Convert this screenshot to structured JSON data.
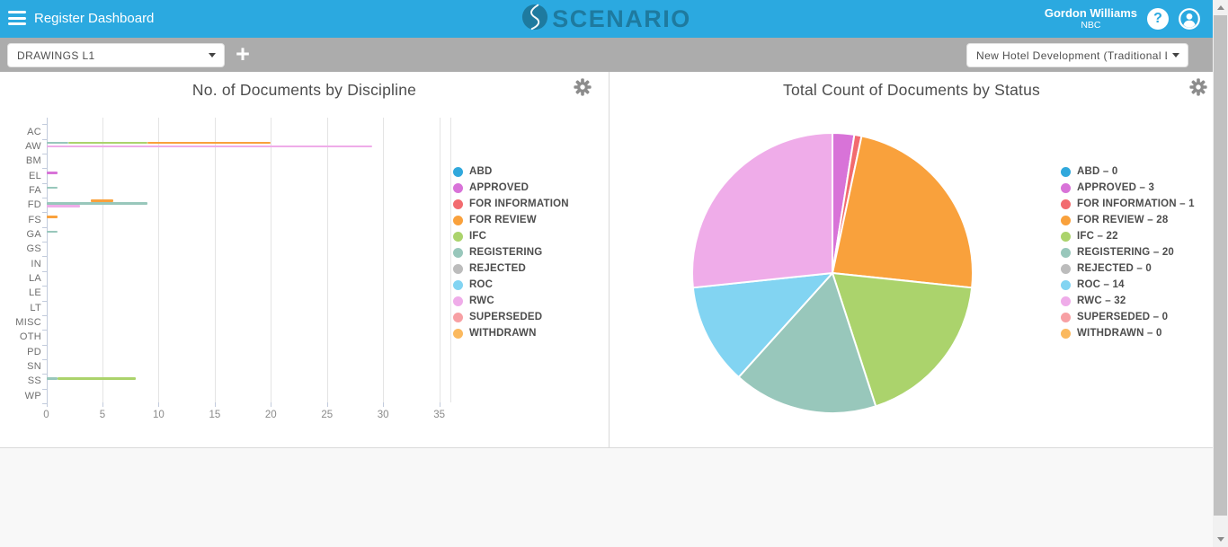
{
  "topbar": {
    "title": "Register Dashboard",
    "logo_text": "SCENARIO",
    "user_name": "Gordon Williams",
    "user_org": "NBC",
    "help_glyph": "?",
    "colors": {
      "bar": "#2BA9E0",
      "logo": "#1E7A9F"
    }
  },
  "toolbar": {
    "register_select_value": "DRAWINGS L1",
    "add_button_label": "+",
    "project_select_value": "New Hotel Development (Traditional L",
    "bar_color": "#ACACAC"
  },
  "chart_data": [
    {
      "type": "bar",
      "title": "No. of Documents by Discipline",
      "orientation": "horizontal",
      "grid": true,
      "legend_position": "right",
      "xlabel": "",
      "ylabel": "",
      "xlim": [
        0,
        36
      ],
      "xticks": [
        0,
        5,
        10,
        15,
        20,
        25,
        30,
        35
      ],
      "categories": [
        "AC",
        "AW",
        "BM",
        "EL",
        "FA",
        "FD",
        "FS",
        "GA",
        "GS",
        "IN",
        "LA",
        "LE",
        "LT",
        "MISC",
        "OTH",
        "PD",
        "SN",
        "SS",
        "WP"
      ],
      "series": [
        {
          "name": "ABD",
          "color": "#30A8DC"
        },
        {
          "name": "APPROVED",
          "color": "#D873D8"
        },
        {
          "name": "FOR INFORMATION",
          "color": "#F26B6F"
        },
        {
          "name": "FOR REVIEW",
          "color": "#F9A13C"
        },
        {
          "name": "IFC",
          "color": "#ABD36C"
        },
        {
          "name": "REGISTERING",
          "color": "#98C7BB"
        },
        {
          "name": "REJECTED",
          "color": "#BCBCBC"
        },
        {
          "name": "ROC",
          "color": "#82D4F2"
        },
        {
          "name": "RWC",
          "color": "#EFACE9"
        },
        {
          "name": "SUPERSEDED",
          "color": "#F7A0A4"
        },
        {
          "name": "WITHDRAWN",
          "color": "#FBB95E"
        }
      ],
      "bars": {
        "AW": [
          {
            "series": "REGISTERING",
            "value": 2,
            "from": 0,
            "to": 2,
            "dy": -4
          },
          {
            "series": "IFC",
            "value": 9,
            "from": 2,
            "to": 9,
            "dy": -4
          },
          {
            "series": "FOR REVIEW",
            "value": 20,
            "from": 9,
            "to": 20,
            "dy": -4
          },
          {
            "series": "RWC",
            "value": 29,
            "from": 0,
            "to": 29,
            "dy": 0
          }
        ],
        "EL": [
          {
            "series": "APPROVED",
            "value": 1,
            "from": 0,
            "to": 1,
            "dy": -3
          }
        ],
        "FA": [
          {
            "series": "REGISTERING",
            "value": 1,
            "from": 0,
            "to": 1,
            "dy": -3
          }
        ],
        "FD": [
          {
            "series": "FOR REVIEW",
            "value": 6,
            "from": 4,
            "to": 6,
            "dy": -5
          },
          {
            "series": "REGISTERING",
            "value": 9,
            "from": 0,
            "to": 9,
            "dy": -2
          },
          {
            "series": "RWC",
            "value": 3,
            "from": 0,
            "to": 3,
            "dy": 1
          }
        ],
        "FS": [
          {
            "series": "FOR REVIEW",
            "value": 1,
            "from": 0,
            "to": 1,
            "dy": -3
          }
        ],
        "GA": [
          {
            "series": "REGISTERING",
            "value": 1,
            "from": 0,
            "to": 1,
            "dy": -3
          }
        ],
        "SS": [
          {
            "series": "REGISTERING",
            "value": 1,
            "from": 0,
            "to": 1,
            "dy": -3
          },
          {
            "series": "IFC",
            "value": 8,
            "from": 1,
            "to": 8,
            "dy": -3
          }
        ]
      }
    },
    {
      "type": "pie",
      "title": "Total Count of Documents by Status",
      "legend_position": "right",
      "start_angle_deg": 0,
      "direction": "clockwise",
      "slices": [
        {
          "label": "ABD",
          "value": 0,
          "color": "#30A8DC"
        },
        {
          "label": "APPROVED",
          "value": 3,
          "color": "#D873D8"
        },
        {
          "label": "FOR INFORMATION",
          "value": 1,
          "color": "#F26B6F"
        },
        {
          "label": "FOR REVIEW",
          "value": 28,
          "color": "#F9A13C"
        },
        {
          "label": "IFC",
          "value": 22,
          "color": "#ABD36C"
        },
        {
          "label": "REGISTERING",
          "value": 20,
          "color": "#98C7BB"
        },
        {
          "label": "REJECTED",
          "value": 0,
          "color": "#BCBCBC"
        },
        {
          "label": "ROC",
          "value": 14,
          "color": "#82D4F2"
        },
        {
          "label": "RWC",
          "value": 32,
          "color": "#EFACE9"
        },
        {
          "label": "SUPERSEDED",
          "value": 0,
          "color": "#F7A0A4"
        },
        {
          "label": "WITHDRAWN",
          "value": 0,
          "color": "#FBB95E"
        }
      ]
    }
  ]
}
